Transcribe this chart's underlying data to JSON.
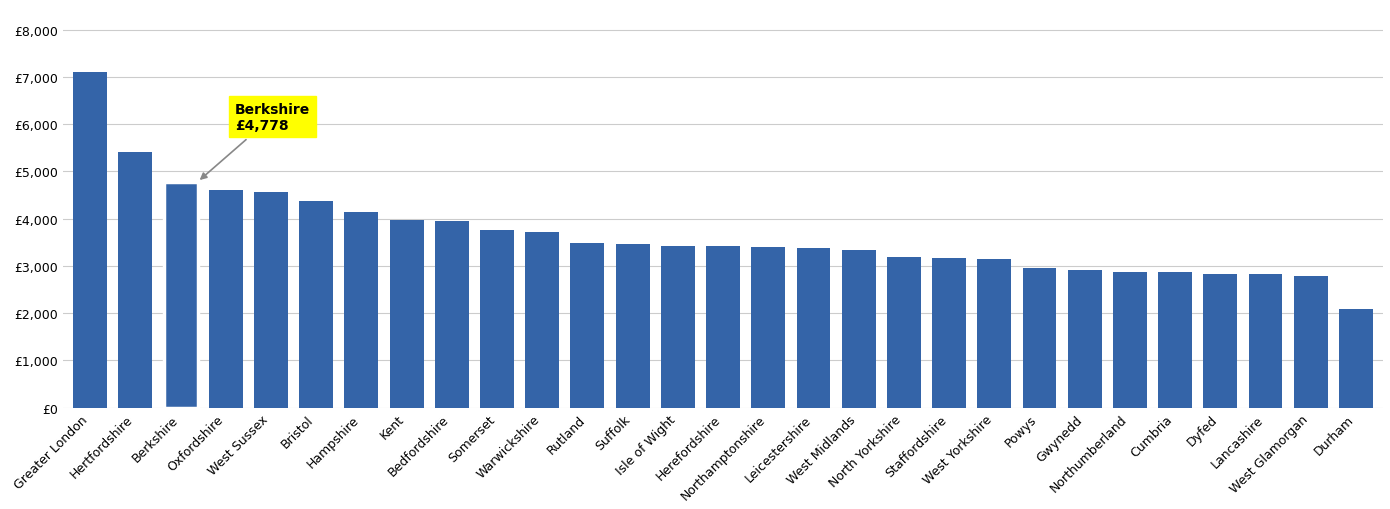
{
  "categories": [
    "Greater London",
    "Hertfordshire",
    "Berkshire",
    "Oxfordshire",
    "West Sussex",
    "Bristol",
    "Hampshire",
    "Kent",
    "Bedfordshire",
    "Somerset",
    "Warwickshire",
    "Rutland",
    "Suffolk",
    "Isle of Wight",
    "Herefordshire",
    "Northamptonshire",
    "Leicestershire",
    "West Midlands",
    "North Yorkshire",
    "Staffordshire",
    "West Yorkshire",
    "Powys",
    "Gwynedd",
    "Northumberland",
    "Cumbria",
    "Dyfed",
    "Lancashire",
    "West Glamorgan",
    "Durham"
  ],
  "values": [
    7100,
    5400,
    4778,
    4600,
    4560,
    4380,
    4150,
    3980,
    3950,
    3750,
    3720,
    3480,
    3460,
    3430,
    3420,
    3390,
    3370,
    3340,
    3180,
    3160,
    3140,
    2960,
    2920,
    2870,
    2870,
    2830,
    2820,
    2790,
    2080
  ],
  "highlight_index": 2,
  "highlight_label": "Berkshire\n£4,778",
  "bar_color": "#3464a8",
  "highlight_outline_color": "#ffffff",
  "annotation_bg_color": "#ffff00",
  "annotation_text_color": "#000000",
  "yticks": [
    0,
    1000,
    2000,
    3000,
    4000,
    5000,
    6000,
    7000,
    8000
  ],
  "ylim": [
    0,
    8500
  ],
  "background_color": "#ffffff",
  "grid_color": "#cccccc",
  "tick_label_fontsize": 9,
  "annotation_fontsize": 10
}
